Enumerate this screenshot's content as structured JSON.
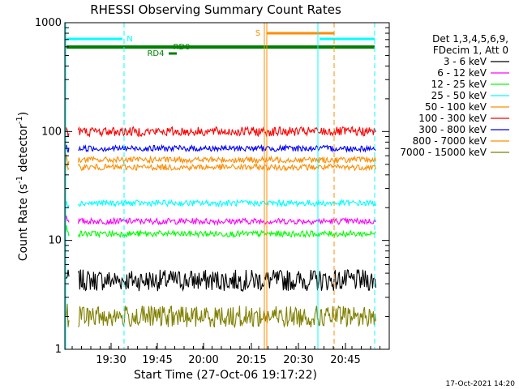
{
  "chart_data": {
    "type": "line",
    "title": "RHESSI Observing Summary Count Rates",
    "xlabel": "Start Time (27-Oct-06 19:17:22)",
    "ylabel_main": "Count Rate (s",
    "ylabel_sup1": "-1",
    "ylabel_mid": " detector",
    "ylabel_sup2": "-1",
    "ylabel_end": ")",
    "yscale": "log",
    "ylim": [
      1,
      1000
    ],
    "xlim_minutes": [
      19.3,
      55.4
    ],
    "y_ticks": [
      {
        "value": 1,
        "label": "1"
      },
      {
        "value": 10,
        "label": "10"
      },
      {
        "value": 100,
        "label": "100"
      },
      {
        "value": 1000,
        "label": "1000"
      }
    ],
    "x_ticks": [
      {
        "value": 37.5,
        "label": "19:30"
      },
      {
        "value": 52.5,
        "label": "19:45"
      },
      {
        "value": 67.5,
        "label": "20:00"
      },
      {
        "value": 82.5,
        "label": "20:15"
      },
      {
        "value": 97.5,
        "label": "20:30"
      },
      {
        "value": 112.5,
        "label": "20:45"
      }
    ],
    "legend_header": [
      "Det 1,3,4,5,6,9,",
      "FDecim 1, Att 0"
    ],
    "legend_position": "right",
    "series": [
      {
        "name": "3 - 6 keV",
        "color": "#000000",
        "level_before": 4.3,
        "level_after": 4.3
      },
      {
        "name": "6 - 12 keV",
        "color": "#ff00ff",
        "level_before": 15,
        "level_after": 15
      },
      {
        "name": "12 - 25 keV",
        "color": "#00ff00",
        "level_before": 11.5,
        "level_after": 11.5
      },
      {
        "name": "25 - 50 keV",
        "color": "#00ffff",
        "level_before": 21,
        "level_after": 22
      },
      {
        "name": "50 - 100 keV",
        "color": "#ff8c00",
        "level_before": 45,
        "level_after": 47
      },
      {
        "name": "100 - 300 keV",
        "color": "#ff0000",
        "level_before": 95,
        "level_after": 100
      },
      {
        "name": "300 - 800 keV",
        "color": "#0000ff",
        "level_before": 67,
        "level_after": 70
      },
      {
        "name": "800 - 7000 keV",
        "color": "#ff8c00",
        "level_before": 51,
        "level_after": 55
      },
      {
        "name": "7000 - 15000 keV",
        "color": "#808000",
        "level_before": 2,
        "level_after": 2
      }
    ],
    "flags": [
      {
        "label": "N",
        "color": "#00ffff"
      },
      {
        "label": "S",
        "color": "#ff8c00"
      },
      {
        "label": "RD4",
        "color": "#008000"
      },
      {
        "label": "RD0",
        "color": "#008000"
      }
    ],
    "timestamp": "17-Oct-2021 14:20"
  }
}
